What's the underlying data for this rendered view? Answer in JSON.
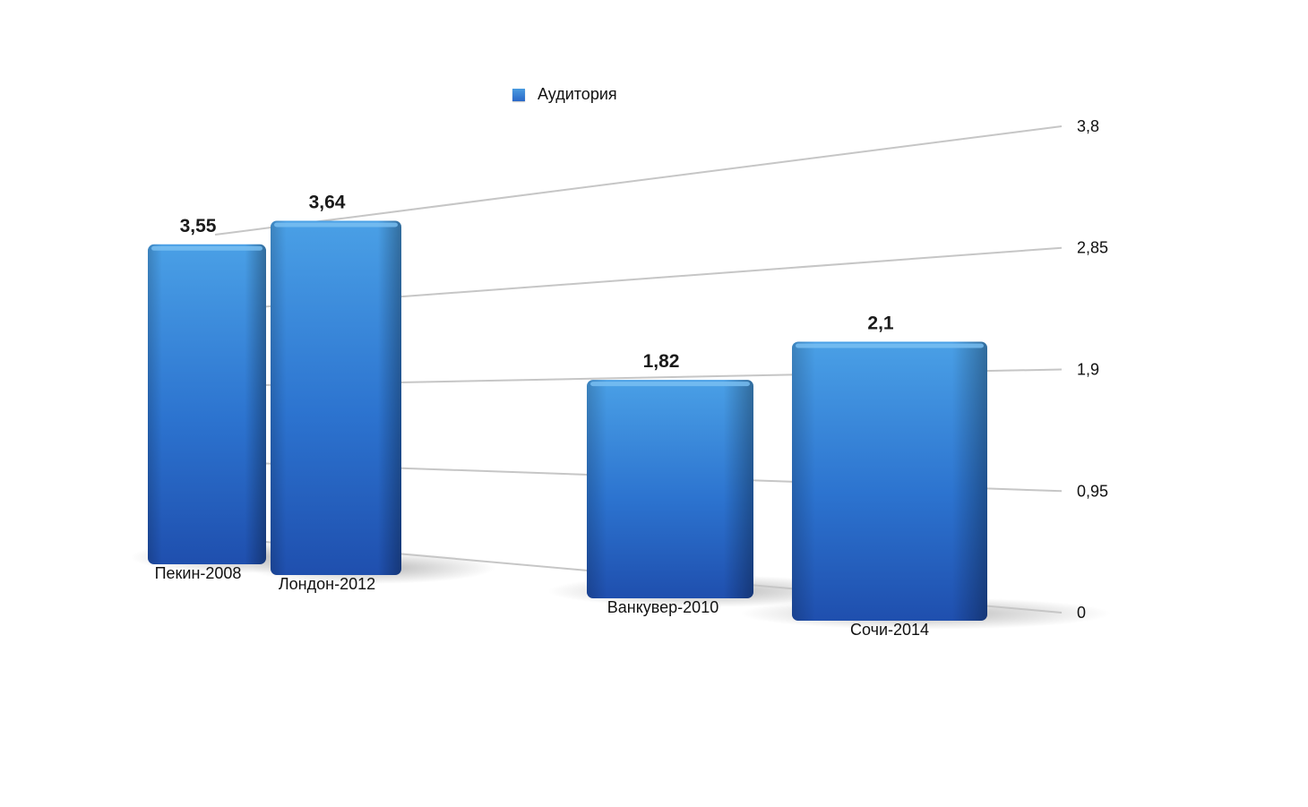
{
  "chart_data": {
    "type": "bar",
    "title": "",
    "xlabel": "",
    "ylabel": "",
    "legend": {
      "position": "top",
      "entries": [
        "Аудитория"
      ]
    },
    "categories": [
      "Пекин-2008",
      "Лондон-2012",
      "Ванкувер-2010",
      "Сочи-2014"
    ],
    "series": [
      {
        "name": "Аудитория",
        "values": [
          3.55,
          3.64,
          1.82,
          2.1
        ],
        "value_labels": [
          "3,55",
          "3,64",
          "1,82",
          "2,1"
        ]
      }
    ],
    "y_ticks": [
      "0",
      "0,95",
      "1,9",
      "2,85",
      "3,8"
    ],
    "y_tick_values": [
      0,
      0.95,
      1.9,
      2.85,
      3.8
    ],
    "ylim": [
      0,
      3.8
    ],
    "grid": true,
    "style": "3d-perspective",
    "bar_color": "#2f6fc9"
  }
}
